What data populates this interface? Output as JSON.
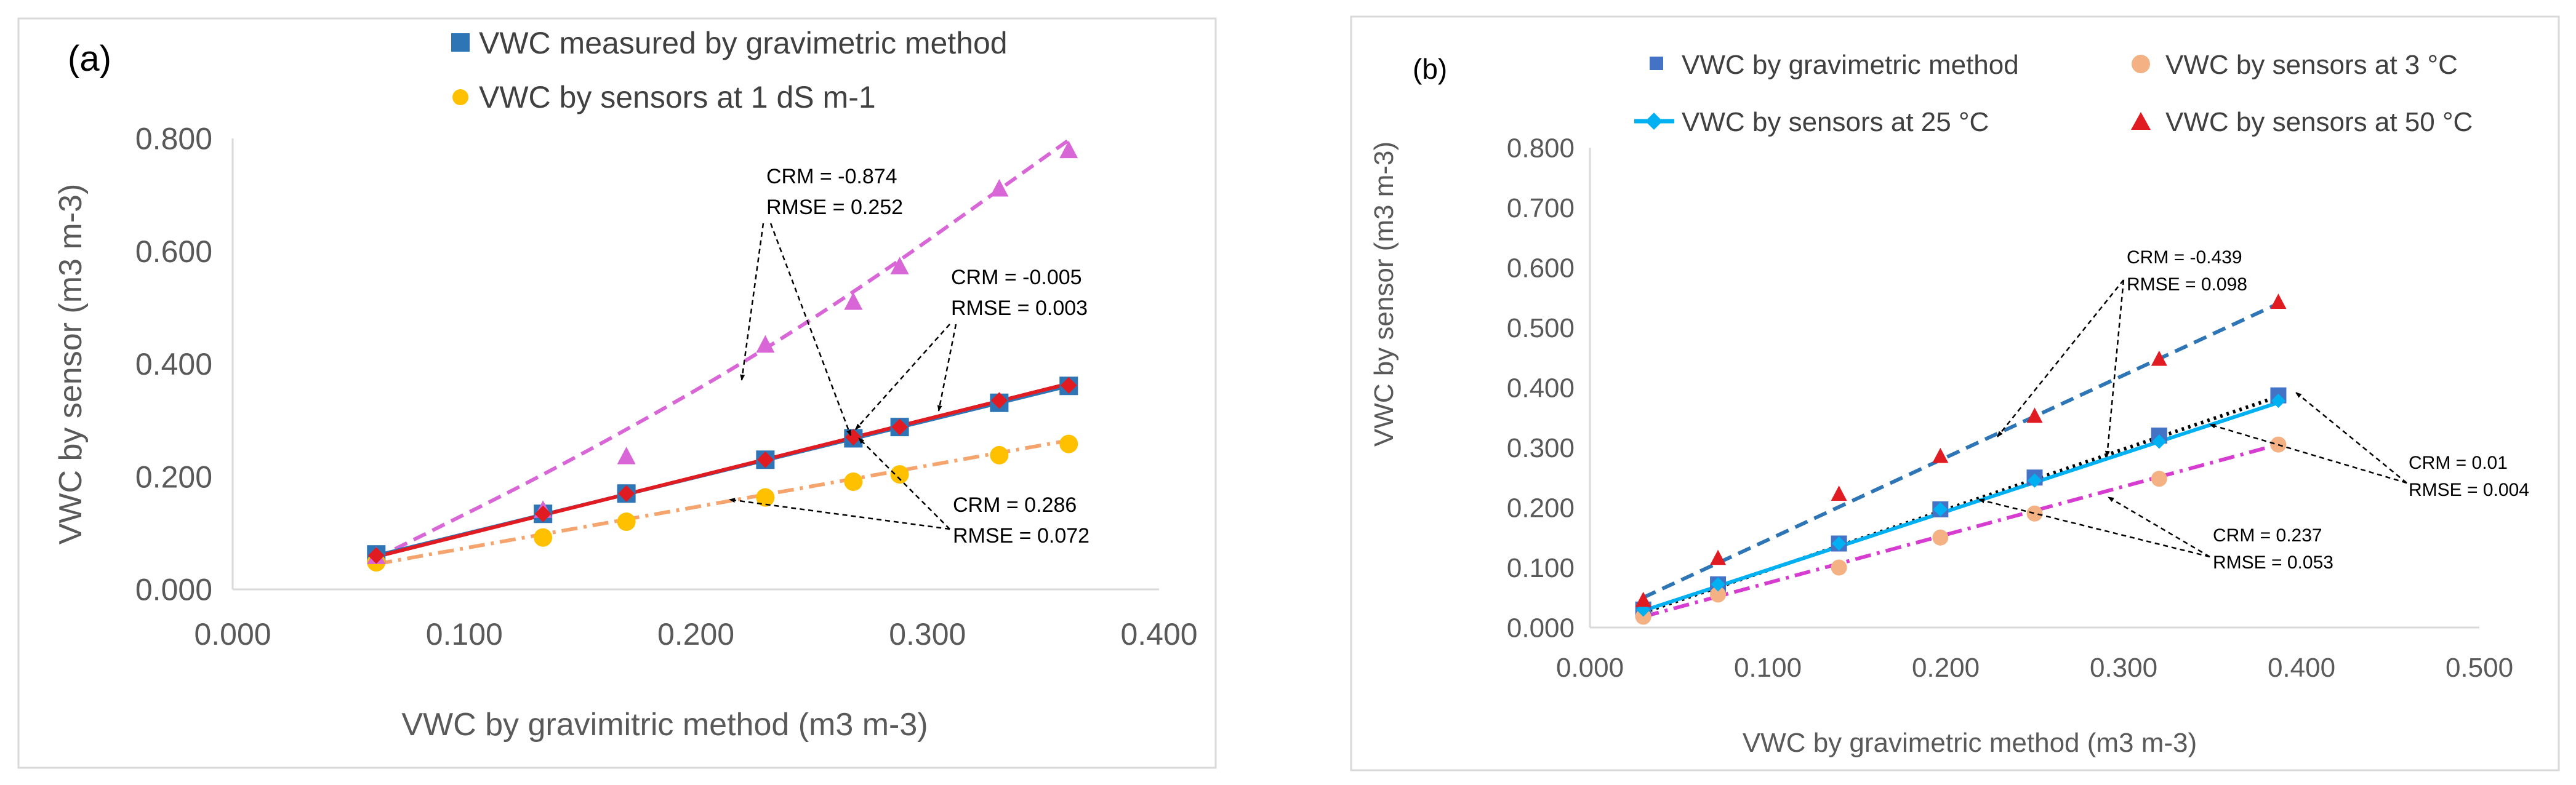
{
  "chart_data": [
    {
      "type": "scatter",
      "panel_label": "(a)",
      "xlabel": "VWC by gravimitric method (m3 m-3)",
      "ylabel": "VWC by sensor (m3 m-3)",
      "xlim": [
        0,
        0.4
      ],
      "ylim": [
        0,
        0.8
      ],
      "x_ticks": [
        "0.000",
        "0.100",
        "0.200",
        "0.300",
        "0.400"
      ],
      "y_ticks": [
        "0.000",
        "0.200",
        "0.400",
        "0.600",
        "0.800"
      ],
      "x": [
        0.062,
        0.134,
        0.17,
        0.23,
        0.268,
        0.288,
        0.331,
        0.361
      ],
      "series": [
        {
          "name": "VWC measured by gravimetric method",
          "marker": "square",
          "color": "#2e75b6",
          "values": [
            0.062,
            0.134,
            0.17,
            0.23,
            0.268,
            0.288,
            0.331,
            0.361
          ],
          "in_legend": true
        },
        {
          "name": "VWC by sensors at 1 dS m-1",
          "marker": "circle",
          "color": "#ffc000",
          "values": [
            0.048,
            0.092,
            0.12,
            0.163,
            0.191,
            0.204,
            0.238,
            0.258
          ],
          "in_legend": true
        },
        {
          "name": "",
          "marker": "triangle",
          "color": "#d966d6",
          "values": [
            0.058,
            0.14,
            0.235,
            0.433,
            0.509,
            0.572,
            0.71,
            0.778
          ],
          "in_legend": false
        },
        {
          "name": "",
          "marker": "diamond",
          "color": "#e11b22",
          "values": [
            0.06,
            0.134,
            0.17,
            0.23,
            0.27,
            0.288,
            0.335,
            0.362
          ],
          "in_legend": false
        }
      ],
      "trendlines": [
        {
          "color": "#d966d6",
          "dash": "dashed",
          "points": [
            [
              0.062,
              0.055
            ],
            [
              0.15,
              0.235
            ],
            [
              0.25,
              0.472
            ],
            [
              0.362,
              0.8
            ]
          ]
        },
        {
          "color": "#2e75b6",
          "dash": "solid",
          "points": [
            [
              0.062,
              0.06
            ],
            [
              0.362,
              0.362
            ]
          ]
        },
        {
          "color": "#e11b22",
          "dash": "solid",
          "points": [
            [
              0.062,
              0.058
            ],
            [
              0.362,
              0.366
            ]
          ]
        },
        {
          "color": "#f4a46c",
          "dash": "dashdot",
          "points": [
            [
              0.062,
              0.045
            ],
            [
              0.362,
              0.265
            ]
          ]
        }
      ],
      "annotations": [
        {
          "crm": "CRM =  -0.874",
          "rmse": "RMSE = 0.252"
        },
        {
          "crm": "CRM =  -0.005",
          "rmse": "RMSE = 0.003"
        },
        {
          "crm": "CRM =  0.286",
          "rmse": "RMSE = 0.072"
        }
      ]
    },
    {
      "type": "scatter",
      "panel_label": "(b)",
      "xlabel": "VWC by gravimetric method (m3 m-3)",
      "ylabel": "VWC by sensor (m3 m-3)",
      "xlim": [
        0,
        0.5
      ],
      "ylim": [
        0,
        0.8
      ],
      "x_ticks": [
        "0.000",
        "0.100",
        "0.200",
        "0.300",
        "0.400",
        "0.500"
      ],
      "y_ticks": [
        "0.000",
        "0.100",
        "0.200",
        "0.300",
        "0.400",
        "0.500",
        "0.600",
        "0.700",
        "0.800"
      ],
      "x": [
        0.03,
        0.072,
        0.14,
        0.197,
        0.25,
        0.32,
        0.387
      ],
      "series": [
        {
          "name": "VWC by gravimetric method",
          "marker": "square",
          "color": "#4472c4",
          "values": [
            0.03,
            0.072,
            0.14,
            0.197,
            0.25,
            0.32,
            0.387
          ]
        },
        {
          "name": "VWC by sensors at 3 °C",
          "marker": "circle",
          "color": "#f4b183",
          "values": [
            0.018,
            0.055,
            0.1,
            0.15,
            0.19,
            0.248,
            0.305
          ]
        },
        {
          "name": "VWC by sensors at 25 °C",
          "marker": "diamond",
          "color": "#00b0f0",
          "values": [
            0.03,
            0.072,
            0.14,
            0.197,
            0.245,
            0.31,
            0.378
          ]
        },
        {
          "name": "VWC by sensors at 50 °C",
          "marker": "triangle",
          "color": "#e11b22",
          "values": [
            0.045,
            0.115,
            0.222,
            0.285,
            0.352,
            0.447,
            0.542
          ]
        }
      ],
      "trendlines": [
        {
          "color": "#2e75b6",
          "dash": "dashed",
          "points": [
            [
              0.03,
              0.05
            ],
            [
              0.387,
              0.54
            ]
          ]
        },
        {
          "color": "#000000",
          "dash": "dotted",
          "points": [
            [
              0.03,
              0.025
            ],
            [
              0.387,
              0.385
            ]
          ]
        },
        {
          "color": "#00b0f0",
          "dash": "solid",
          "points": [
            [
              0.03,
              0.028
            ],
            [
              0.387,
              0.375
            ]
          ]
        },
        {
          "color": "#d63ccf",
          "dash": "dashdot",
          "points": [
            [
              0.03,
              0.018
            ],
            [
              0.387,
              0.305
            ]
          ]
        }
      ],
      "annotations": [
        {
          "crm": "CRM = -0.439",
          "rmse": "RMSE = 0.098"
        },
        {
          "crm": "CRM = 0.01",
          "rmse": "RMSE = 0.004"
        },
        {
          "crm": "CRM = 0.237",
          "rmse": "RMSE = 0.053"
        }
      ]
    }
  ]
}
